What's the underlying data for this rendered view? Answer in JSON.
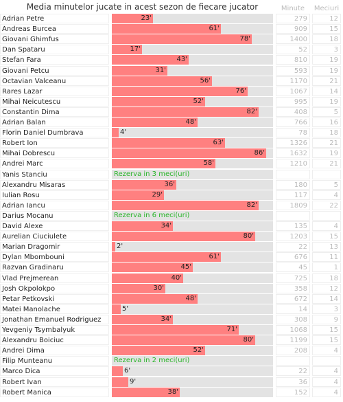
{
  "title": "Media minutelor jucate in acest sezon de fiecare jucator",
  "headers": {
    "minute": "Minute",
    "meciuri": "Meciuri"
  },
  "colors": {
    "bar": "#ff8080",
    "track": "#e3e3e3",
    "reserve": "#2ab52a"
  },
  "chart_data": {
    "type": "bar",
    "orientation": "horizontal",
    "x_max": 90,
    "categories": [
      "Adrian Petre",
      "Andreas Burcea",
      "Giovani Ghimfus",
      "Dan Spataru",
      "Stefan Fara",
      "Giovani Petcu",
      "Octavian Valceanu",
      "Rares Lazar",
      "Mihai Neicutescu",
      "Constantin Dima",
      "Adrian Balan",
      "Florin Daniel Dumbrava",
      "Robert Ion",
      "Mihai Dobrescu",
      "Andrei Marc",
      "Yanis Stanciu",
      "Alexandru Misaras",
      "Iulian Rosu",
      "Adrian Iancu",
      "Darius Mocanu",
      "David Alexe",
      "Aurelian Ciuciulete",
      "Marian Dragomir",
      "Dylan Mbombouni",
      "Razvan Gradinaru",
      "Vlad Prejmerean",
      "Josh Okpolokpo",
      "Petar Petkovski",
      "Matei Manolache",
      "Jonathan Emanuel Rodriguez",
      "Yevgeniy Tsymbalyuk",
      "Alexandru Boiciuc",
      "Andrei Dima",
      "Filip Munteanu",
      "Marco Dica",
      "Robert Ivan",
      "Robert Manica"
    ],
    "rows": [
      {
        "avg": 23,
        "label": "23'",
        "minute": "279",
        "meciuri": "12"
      },
      {
        "avg": 61,
        "label": "61'",
        "minute": "909",
        "meciuri": "15"
      },
      {
        "avg": 78,
        "label": "78'",
        "minute": "1400",
        "meciuri": "18"
      },
      {
        "avg": 17,
        "label": "17'",
        "minute": "52",
        "meciuri": "3"
      },
      {
        "avg": 43,
        "label": "43'",
        "minute": "810",
        "meciuri": "19"
      },
      {
        "avg": 31,
        "label": "31'",
        "minute": "593",
        "meciuri": "19"
      },
      {
        "avg": 56,
        "label": "56'",
        "minute": "1170",
        "meciuri": "21"
      },
      {
        "avg": 76,
        "label": "76'",
        "minute": "1067",
        "meciuri": "14"
      },
      {
        "avg": 52,
        "label": "52'",
        "minute": "995",
        "meciuri": "19"
      },
      {
        "avg": 82,
        "label": "82'",
        "minute": "408",
        "meciuri": "5"
      },
      {
        "avg": 48,
        "label": "48'",
        "minute": "766",
        "meciuri": "16"
      },
      {
        "avg": 4,
        "label": "4'",
        "minute": "78",
        "meciuri": "18"
      },
      {
        "avg": 63,
        "label": "63'",
        "minute": "1326",
        "meciuri": "21"
      },
      {
        "avg": 86,
        "label": "86'",
        "minute": "1632",
        "meciuri": "19"
      },
      {
        "avg": 58,
        "label": "58'",
        "minute": "1210",
        "meciuri": "21"
      },
      {
        "reserve": "Rezerva in 3 meci(uri)"
      },
      {
        "avg": 36,
        "label": "36'",
        "minute": "180",
        "meciuri": "5"
      },
      {
        "avg": 29,
        "label": "29'",
        "minute": "117",
        "meciuri": "4"
      },
      {
        "avg": 82,
        "label": "82'",
        "minute": "1809",
        "meciuri": "22"
      },
      {
        "reserve": "Rezerva in 6 meci(uri)"
      },
      {
        "avg": 34,
        "label": "34'",
        "minute": "135",
        "meciuri": "4"
      },
      {
        "avg": 80,
        "label": "80'",
        "minute": "1203",
        "meciuri": "15"
      },
      {
        "avg": 2,
        "label": "2'",
        "minute": "22",
        "meciuri": "13"
      },
      {
        "avg": 61,
        "label": "61'",
        "minute": "676",
        "meciuri": "11"
      },
      {
        "avg": 45,
        "label": "45'",
        "minute": "45",
        "meciuri": "1"
      },
      {
        "avg": 40,
        "label": "40'",
        "minute": "725",
        "meciuri": "18"
      },
      {
        "avg": 30,
        "label": "30'",
        "minute": "358",
        "meciuri": "12"
      },
      {
        "avg": 48,
        "label": "48'",
        "minute": "672",
        "meciuri": "14"
      },
      {
        "avg": 5,
        "label": "5'",
        "minute": "14",
        "meciuri": "3"
      },
      {
        "avg": 34,
        "label": "34'",
        "minute": "308",
        "meciuri": "9"
      },
      {
        "avg": 71,
        "label": "71'",
        "minute": "1068",
        "meciuri": "15"
      },
      {
        "avg": 80,
        "label": "80'",
        "minute": "1199",
        "meciuri": "15"
      },
      {
        "avg": 52,
        "label": "52'",
        "minute": "208",
        "meciuri": "4"
      },
      {
        "reserve": "Rezerva in 2 meci(uri)"
      },
      {
        "avg": 6,
        "label": "6'",
        "minute": "22",
        "meciuri": "4"
      },
      {
        "avg": 9,
        "label": "9'",
        "minute": "36",
        "meciuri": "4"
      },
      {
        "avg": 38,
        "label": "38'",
        "minute": "152",
        "meciuri": "4"
      }
    ]
  }
}
